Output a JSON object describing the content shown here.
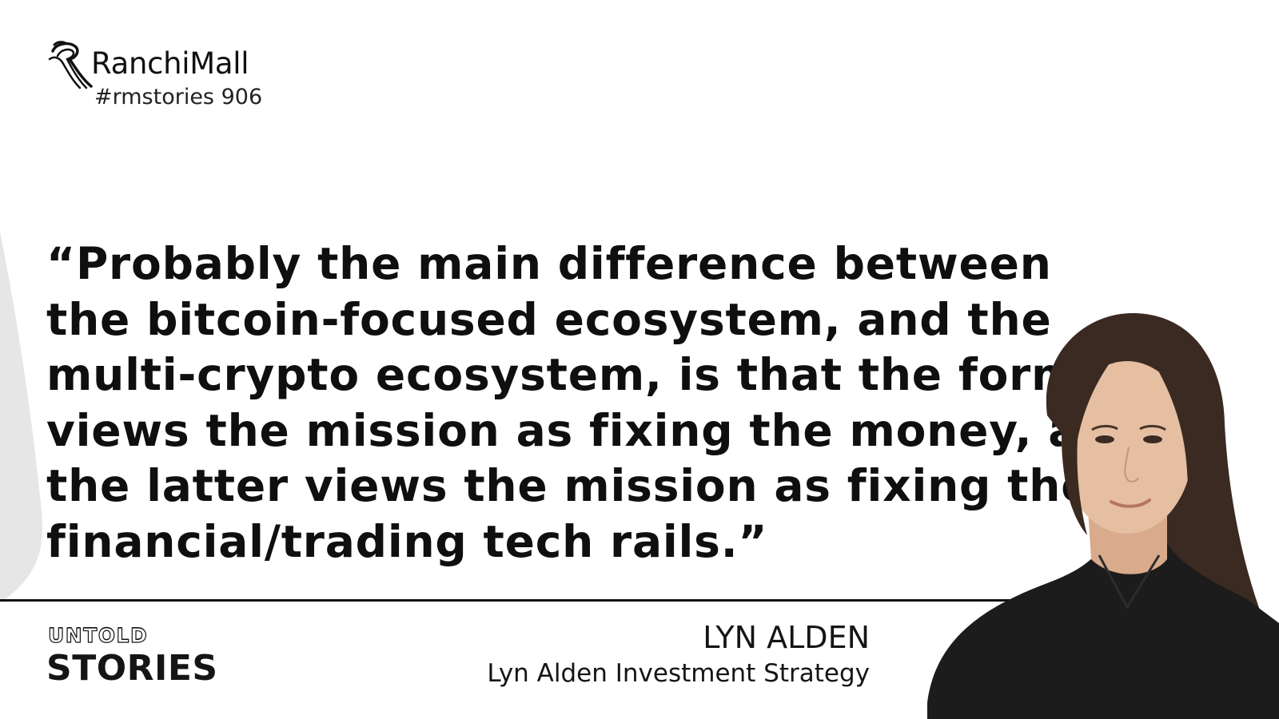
{
  "brand": {
    "name": "RanchiMall",
    "story_tag": "#rmstories 906",
    "logo_icon": "stylized-r-mark-icon"
  },
  "quote": {
    "lines": [
      "“Probably the main difference between",
      "the bitcoin-focused ecosystem, and the",
      "multi-crypto ecosystem, is that the former",
      "views the mission as fixing the money, and",
      "the latter views the mission as fixing the",
      "financial/trading tech rails.”"
    ]
  },
  "footer": {
    "series_line1": "UNTOLD",
    "series_line2": "STORIES"
  },
  "speaker": {
    "name": "LYN ALDEN",
    "organization": "Lyn Alden Investment Strategy"
  },
  "colors": {
    "background": "#ffffff",
    "text": "#111111",
    "left_accent": "#e6e6e6"
  }
}
